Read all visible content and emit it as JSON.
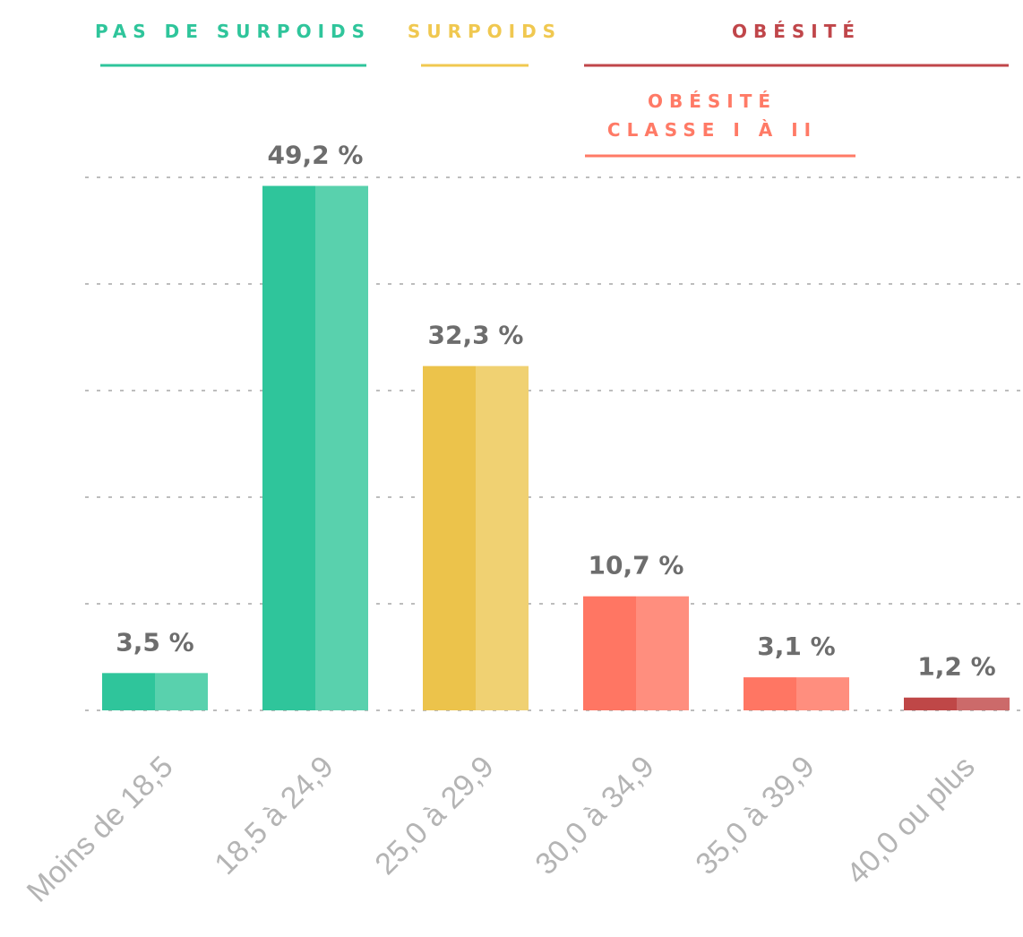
{
  "groups": [
    {
      "label": "PAS DE SURPOIDS",
      "color": "#2fc59b"
    },
    {
      "label": "SURPOIDS",
      "color": "#f0c850"
    },
    {
      "label": "OBÉSITÉ",
      "color": "#c0464a"
    },
    {
      "label_lines": [
        "OBÉSITÉ",
        "CLASSE I À II"
      ],
      "color": "#ff7a66"
    }
  ],
  "chart_data": {
    "type": "bar",
    "categories": [
      "Moins de 18,5",
      "18,5 à 24,9",
      "25,0 à 29,9",
      "30,0 à 34,9",
      "35,0 à 39,9",
      "40,0 ou plus"
    ],
    "values": [
      3.5,
      49.2,
      32.3,
      10.7,
      3.1,
      1.2
    ],
    "value_labels": [
      "3,5 %",
      "49,2 %",
      "32,3 %",
      "10,7 %",
      "3,1 %",
      "1,2 %"
    ],
    "bar_colors": [
      {
        "dark": "#2fc59b",
        "light": "#59d1ad"
      },
      {
        "dark": "#2fc59b",
        "light": "#59d1ad"
      },
      {
        "dark": "#ecc34b",
        "light": "#f0d172"
      },
      {
        "dark": "#ff7663",
        "light": "#ff8e7e"
      },
      {
        "dark": "#ff7663",
        "light": "#ff8e7e"
      },
      {
        "dark": "#bf4747",
        "light": "#cc6a6a"
      }
    ],
    "ylim": [
      0,
      50
    ],
    "grid": true
  }
}
